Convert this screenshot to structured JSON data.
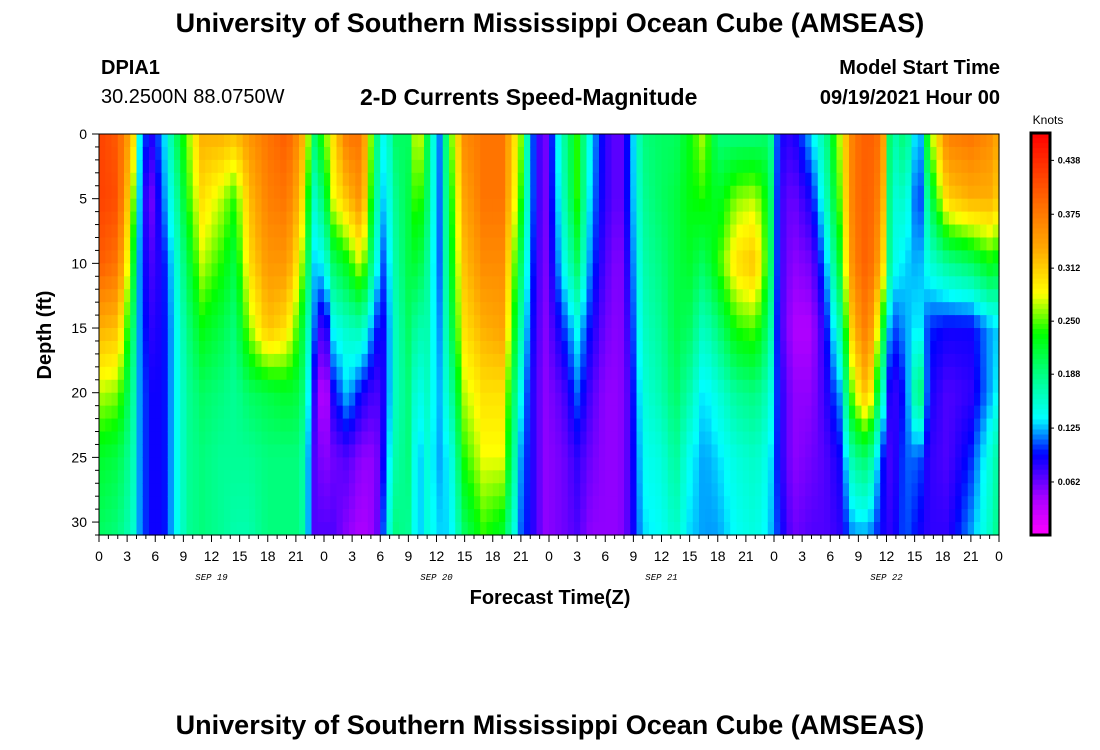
{
  "header": {
    "title_top": "University of Southern Mississippi Ocean Cube (AMSEAS)",
    "title_bottom": "University of Southern Mississippi Ocean Cube (AMSEAS)",
    "station": "DPIA1",
    "coords": "30.2500N  88.0750W",
    "chart_title": "2-D Currents Speed-Magnitude",
    "model_start_label": "Model Start Time",
    "model_start_value": "09/19/2021 Hour 00"
  },
  "chart_data": {
    "type": "heatmap",
    "title": "2-D Currents Speed-Magnitude",
    "xlabel": "Forecast Time(Z)",
    "ylabel": "Depth (ft)",
    "x_unit": "hours since model start",
    "xlim": [
      0,
      96
    ],
    "ylim": [
      31,
      0
    ],
    "y_ticks": [
      0,
      5,
      10,
      15,
      20,
      25,
      30
    ],
    "x_tick_labels": [
      "0",
      "3",
      "6",
      "9",
      "12",
      "15",
      "18",
      "21",
      "0",
      "3",
      "6",
      "9",
      "12",
      "15",
      "18",
      "21",
      "0",
      "3",
      "6",
      "9",
      "12",
      "15",
      "18",
      "21",
      "0",
      "3",
      "6",
      "9",
      "12",
      "15",
      "18",
      "21",
      "0"
    ],
    "day_labels": [
      {
        "label": "SEP 19",
        "hour": 12
      },
      {
        "label": "SEP 20",
        "hour": 36
      },
      {
        "label": "SEP 21",
        "hour": 60
      },
      {
        "label": "SEP 22",
        "hour": 84
      }
    ],
    "colorbar": {
      "label": "Knots",
      "min": 0.0,
      "max": 0.47,
      "ticks": [
        0.062,
        0.125,
        0.188,
        0.25,
        0.312,
        0.375,
        0.438
      ],
      "tick_labels": [
        "0.062",
        "0.125",
        "0.188",
        "0.250",
        "0.312",
        "0.375",
        "0.438"
      ]
    },
    "depth_profile": [
      0,
      5,
      10,
      15,
      20,
      25,
      31
    ],
    "columns": [
      {
        "h": 0,
        "v": [
          0.42,
          0.42,
          0.4,
          0.33,
          0.27,
          0.22,
          0.2
        ]
      },
      {
        "h": 2,
        "v": [
          0.4,
          0.41,
          0.38,
          0.32,
          0.26,
          0.21,
          0.19
        ]
      },
      {
        "h": 3.6,
        "v": [
          0.32,
          0.27,
          0.23,
          0.2,
          0.18,
          0.17,
          0.16
        ]
      },
      {
        "h": 4.3,
        "v": [
          0.14,
          0.13,
          0.12,
          0.12,
          0.12,
          0.12,
          0.12
        ]
      },
      {
        "h": 5.4,
        "v": [
          0.08,
          0.05,
          0.07,
          0.08,
          0.09,
          0.09,
          0.09
        ]
      },
      {
        "h": 6.8,
        "v": [
          0.12,
          0.11,
          0.09,
          0.09,
          0.09,
          0.09,
          0.09
        ]
      },
      {
        "h": 8,
        "v": [
          0.19,
          0.16,
          0.14,
          0.13,
          0.13,
          0.13,
          0.13
        ]
      },
      {
        "h": 9.5,
        "v": [
          0.26,
          0.24,
          0.21,
          0.19,
          0.18,
          0.18,
          0.18
        ]
      },
      {
        "h": 11,
        "v": [
          0.33,
          0.3,
          0.27,
          0.23,
          0.2,
          0.19,
          0.19
        ]
      },
      {
        "h": 13,
        "v": [
          0.33,
          0.27,
          0.24,
          0.21,
          0.19,
          0.18,
          0.18
        ]
      },
      {
        "h": 14.5,
        "v": [
          0.32,
          0.24,
          0.21,
          0.19,
          0.18,
          0.18,
          0.17
        ]
      },
      {
        "h": 16,
        "v": [
          0.35,
          0.32,
          0.3,
          0.26,
          0.2,
          0.18,
          0.17
        ]
      },
      {
        "h": 18,
        "v": [
          0.38,
          0.37,
          0.35,
          0.32,
          0.21,
          0.19,
          0.19
        ]
      },
      {
        "h": 20,
        "v": [
          0.4,
          0.38,
          0.35,
          0.3,
          0.22,
          0.19,
          0.19
        ]
      },
      {
        "h": 21.5,
        "v": [
          0.35,
          0.32,
          0.28,
          0.23,
          0.21,
          0.19,
          0.19
        ]
      },
      {
        "h": 23,
        "v": [
          0.2,
          0.16,
          0.13,
          0.11,
          0.08,
          0.07,
          0.07
        ]
      },
      {
        "h": 24,
        "v": [
          0.25,
          0.2,
          0.14,
          0.06,
          0.02,
          0.05,
          0.07
        ]
      },
      {
        "h": 25,
        "v": [
          0.3,
          0.28,
          0.2,
          0.14,
          0.09,
          0.06,
          0.07
        ]
      },
      {
        "h": 26.5,
        "v": [
          0.38,
          0.32,
          0.23,
          0.16,
          0.13,
          0.07,
          0.05
        ]
      },
      {
        "h": 28,
        "v": [
          0.38,
          0.36,
          0.28,
          0.17,
          0.09,
          0.05,
          0.04
        ]
      },
      {
        "h": 29.5,
        "v": [
          0.2,
          0.18,
          0.15,
          0.1,
          0.07,
          0.05,
          0.05
        ]
      },
      {
        "h": 30.5,
        "v": [
          0.13,
          0.12,
          0.1,
          0.09,
          0.09,
          0.1,
          0.12
        ]
      },
      {
        "h": 31.5,
        "v": [
          0.2,
          0.18,
          0.17,
          0.16,
          0.16,
          0.17,
          0.19
        ]
      },
      {
        "h": 33,
        "v": [
          0.2,
          0.21,
          0.21,
          0.2,
          0.19,
          0.19,
          0.18
        ]
      },
      {
        "h": 34,
        "v": [
          0.3,
          0.26,
          0.22,
          0.17,
          0.14,
          0.12,
          0.12
        ]
      },
      {
        "h": 35,
        "v": [
          0.21,
          0.2,
          0.18,
          0.17,
          0.16,
          0.15,
          0.15
        ]
      },
      {
        "h": 36.2,
        "v": [
          0.1,
          0.1,
          0.1,
          0.11,
          0.12,
          0.12,
          0.13
        ]
      },
      {
        "h": 37.5,
        "v": [
          0.25,
          0.23,
          0.22,
          0.2,
          0.17,
          0.14,
          0.13
        ]
      },
      {
        "h": 39,
        "v": [
          0.36,
          0.34,
          0.32,
          0.3,
          0.27,
          0.24,
          0.2
        ]
      },
      {
        "h": 41,
        "v": [
          0.38,
          0.38,
          0.36,
          0.33,
          0.3,
          0.28,
          0.24
        ]
      },
      {
        "h": 43,
        "v": [
          0.38,
          0.38,
          0.36,
          0.34,
          0.3,
          0.28,
          0.22
        ]
      },
      {
        "h": 45,
        "v": [
          0.26,
          0.24,
          0.2,
          0.17,
          0.14,
          0.12,
          0.11
        ]
      },
      {
        "h": 46,
        "v": [
          0.12,
          0.12,
          0.11,
          0.1,
          0.09,
          0.09,
          0.09
        ]
      },
      {
        "h": 47.5,
        "v": [
          0.05,
          0.05,
          0.05,
          0.05,
          0.05,
          0.05,
          0.05
        ]
      },
      {
        "h": 49.5,
        "v": [
          0.17,
          0.16,
          0.14,
          0.1,
          0.07,
          0.06,
          0.06
        ]
      },
      {
        "h": 51,
        "v": [
          0.24,
          0.24,
          0.2,
          0.14,
          0.11,
          0.08,
          0.07
        ]
      },
      {
        "h": 52.5,
        "v": [
          0.13,
          0.12,
          0.11,
          0.09,
          0.07,
          0.06,
          0.05
        ]
      },
      {
        "h": 54,
        "v": [
          0.08,
          0.08,
          0.07,
          0.06,
          0.05,
          0.05,
          0.05
        ]
      },
      {
        "h": 55.5,
        "v": [
          0.06,
          0.06,
          0.05,
          0.05,
          0.05,
          0.05,
          0.05
        ]
      },
      {
        "h": 56.5,
        "v": [
          0.1,
          0.1,
          0.09,
          0.08,
          0.07,
          0.07,
          0.07
        ]
      },
      {
        "h": 58,
        "v": [
          0.19,
          0.18,
          0.17,
          0.16,
          0.15,
          0.14,
          0.13
        ]
      },
      {
        "h": 60,
        "v": [
          0.2,
          0.2,
          0.19,
          0.18,
          0.17,
          0.15,
          0.14
        ]
      },
      {
        "h": 61.5,
        "v": [
          0.2,
          0.21,
          0.21,
          0.21,
          0.2,
          0.18,
          0.16
        ]
      },
      {
        "h": 63,
        "v": [
          0.23,
          0.23,
          0.22,
          0.2,
          0.17,
          0.14,
          0.13
        ]
      },
      {
        "h": 64.5,
        "v": [
          0.27,
          0.24,
          0.2,
          0.16,
          0.13,
          0.12,
          0.12
        ]
      },
      {
        "h": 66,
        "v": [
          0.19,
          0.22,
          0.24,
          0.19,
          0.15,
          0.13,
          0.12
        ]
      },
      {
        "h": 68,
        "v": [
          0.19,
          0.26,
          0.3,
          0.24,
          0.18,
          0.15,
          0.14
        ]
      },
      {
        "h": 70,
        "v": [
          0.19,
          0.27,
          0.32,
          0.25,
          0.19,
          0.16,
          0.15
        ]
      },
      {
        "h": 71.5,
        "v": [
          0.2,
          0.22,
          0.22,
          0.19,
          0.16,
          0.14,
          0.13
        ]
      },
      {
        "h": 72.5,
        "v": [
          0.09,
          0.08,
          0.08,
          0.08,
          0.09,
          0.09,
          0.1
        ]
      },
      {
        "h": 74,
        "v": [
          0.08,
          0.06,
          0.05,
          0.04,
          0.05,
          0.05,
          0.06
        ]
      },
      {
        "h": 76,
        "v": [
          0.13,
          0.09,
          0.06,
          0.04,
          0.05,
          0.06,
          0.07
        ]
      },
      {
        "h": 77.5,
        "v": [
          0.18,
          0.16,
          0.12,
          0.09,
          0.08,
          0.07,
          0.07
        ]
      },
      {
        "h": 79,
        "v": [
          0.27,
          0.25,
          0.22,
          0.17,
          0.12,
          0.09,
          0.08
        ]
      },
      {
        "h": 80.5,
        "v": [
          0.38,
          0.38,
          0.37,
          0.33,
          0.27,
          0.18,
          0.12
        ]
      },
      {
        "h": 82,
        "v": [
          0.4,
          0.4,
          0.4,
          0.38,
          0.33,
          0.2,
          0.12
        ]
      },
      {
        "h": 83.5,
        "v": [
          0.38,
          0.36,
          0.33,
          0.24,
          0.17,
          0.1,
          0.09
        ]
      },
      {
        "h": 84.5,
        "v": [
          0.16,
          0.15,
          0.15,
          0.1,
          0.07,
          0.07,
          0.08
        ]
      },
      {
        "h": 86,
        "v": [
          0.2,
          0.16,
          0.13,
          0.12,
          0.1,
          0.11,
          0.11
        ]
      },
      {
        "h": 87.5,
        "v": [
          0.1,
          0.09,
          0.12,
          0.14,
          0.21,
          0.11,
          0.09
        ]
      },
      {
        "h": 88.5,
        "v": [
          0.25,
          0.19,
          0.15,
          0.1,
          0.09,
          0.08,
          0.08
        ]
      },
      {
        "h": 90.5,
        "v": [
          0.37,
          0.31,
          0.18,
          0.09,
          0.07,
          0.07,
          0.08
        ]
      },
      {
        "h": 93,
        "v": [
          0.38,
          0.33,
          0.2,
          0.09,
          0.08,
          0.1,
          0.12
        ]
      },
      {
        "h": 95,
        "v": [
          0.36,
          0.33,
          0.23,
          0.12,
          0.12,
          0.15,
          0.16
        ]
      },
      {
        "h": 96,
        "v": [
          0.33,
          0.31,
          0.22,
          0.13,
          0.14,
          0.18,
          0.19
        ]
      }
    ]
  },
  "colors": {
    "frame": "#000000",
    "background": "#ffffff"
  }
}
